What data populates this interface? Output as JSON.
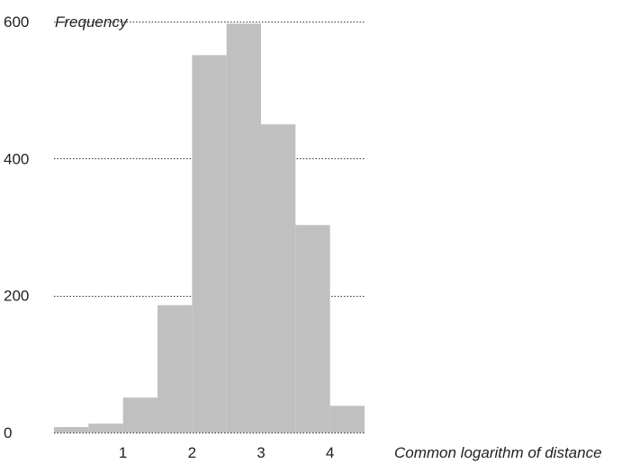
{
  "chart_data": {
    "type": "bar",
    "title": "",
    "xlabel": "Common logarithm of distance",
    "ylabel": "Frequency",
    "bin_edges": [
      0,
      0.5,
      1,
      1.5,
      2,
      2.5,
      3,
      3.5,
      4,
      4.5
    ],
    "values": [
      8,
      13,
      51,
      186,
      551,
      597,
      450,
      303,
      39
    ],
    "x_ticks": [
      1,
      2,
      3,
      4
    ],
    "y_ticks": [
      0,
      200,
      400,
      600
    ],
    "xlim": [
      0,
      4.5
    ],
    "ylim": [
      0,
      600
    ],
    "grid": "horizontal dotted",
    "colors": {
      "bar": "#c0c0c0",
      "grid": "#333333"
    }
  }
}
